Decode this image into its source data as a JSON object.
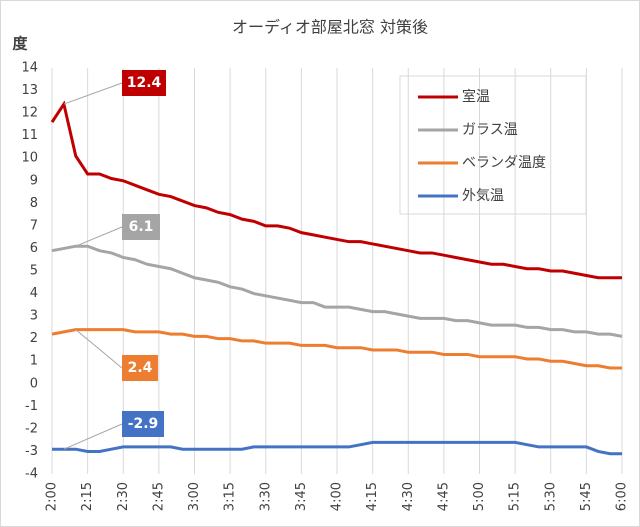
{
  "chart_data": {
    "type": "line",
    "title": "オーディオ部屋北窓 対策後",
    "y_label": "度",
    "categories": [
      "2:00",
      null,
      null,
      "2:15",
      null,
      null,
      "2:30",
      null,
      null,
      "2:45",
      null,
      null,
      "3:00",
      null,
      null,
      "3:15",
      null,
      null,
      "3:30",
      null,
      null,
      "3:45",
      null,
      null,
      "4:00",
      null,
      null,
      "4:15",
      null,
      null,
      "4:30",
      null,
      null,
      "4:45",
      null,
      null,
      "5:00",
      null,
      null,
      "5:15",
      null,
      null,
      "5:30",
      null,
      null,
      "5:45",
      null,
      null,
      "6:00"
    ],
    "series": [
      {
        "name": "室温",
        "color": "#c00000",
        "values": [
          11.6,
          12.4,
          10.1,
          9.3,
          9.3,
          9.1,
          9.0,
          8.8,
          8.6,
          8.4,
          8.3,
          8.1,
          7.9,
          7.8,
          7.6,
          7.5,
          7.3,
          7.2,
          7.0,
          7.0,
          6.9,
          6.7,
          6.6,
          6.5,
          6.4,
          6.3,
          6.3,
          6.2,
          6.1,
          6.0,
          5.9,
          5.8,
          5.8,
          5.7,
          5.6,
          5.5,
          5.4,
          5.3,
          5.3,
          5.2,
          5.1,
          5.1,
          5.0,
          5.0,
          4.9,
          4.8,
          4.7,
          4.7,
          4.7
        ],
        "value_labels": [
          null,
          "12.4",
          null,
          null,
          null,
          null,
          null,
          null,
          null,
          null,
          null,
          null,
          null,
          null,
          null,
          null,
          null,
          null,
          null,
          null,
          null,
          null,
          null,
          null,
          null,
          null,
          null,
          null,
          null,
          null,
          null,
          null,
          null,
          null,
          null,
          null,
          null,
          null,
          null,
          null,
          null,
          null,
          null,
          null,
          null,
          null,
          null,
          null,
          null
        ]
      },
      {
        "name": "ガラス温",
        "color": "#a5a5a5",
        "values": [
          5.9,
          6.0,
          6.1,
          6.1,
          5.9,
          5.8,
          5.6,
          5.5,
          5.3,
          5.2,
          5.1,
          4.9,
          4.7,
          4.6,
          4.5,
          4.3,
          4.2,
          4.0,
          3.9,
          3.8,
          3.7,
          3.6,
          3.6,
          3.4,
          3.4,
          3.4,
          3.3,
          3.2,
          3.2,
          3.1,
          3.0,
          2.9,
          2.9,
          2.9,
          2.8,
          2.8,
          2.7,
          2.6,
          2.6,
          2.6,
          2.5,
          2.5,
          2.4,
          2.4,
          2.3,
          2.3,
          2.2,
          2.2,
          2.1
        ],
        "value_labels": [
          null,
          null,
          "6.1",
          null,
          null,
          null,
          null,
          null,
          null,
          null,
          null,
          null,
          null,
          null,
          null,
          null,
          null,
          null,
          null,
          null,
          null,
          null,
          null,
          null,
          null,
          null,
          null,
          null,
          null,
          null,
          null,
          null,
          null,
          null,
          null,
          null,
          null,
          null,
          null,
          null,
          null,
          null,
          null,
          null,
          null,
          null,
          null,
          null,
          null
        ]
      },
      {
        "name": "ベランダ温度",
        "color": "#ed7d31",
        "values": [
          2.2,
          2.3,
          2.4,
          2.4,
          2.4,
          2.4,
          2.4,
          2.3,
          2.3,
          2.3,
          2.2,
          2.2,
          2.1,
          2.1,
          2.0,
          2.0,
          1.9,
          1.9,
          1.8,
          1.8,
          1.8,
          1.7,
          1.7,
          1.7,
          1.6,
          1.6,
          1.6,
          1.5,
          1.5,
          1.5,
          1.4,
          1.4,
          1.4,
          1.3,
          1.3,
          1.3,
          1.2,
          1.2,
          1.2,
          1.2,
          1.1,
          1.1,
          1.0,
          1.0,
          0.9,
          0.8,
          0.8,
          0.7,
          0.7
        ],
        "value_labels": [
          null,
          null,
          "2.4",
          null,
          null,
          null,
          null,
          null,
          null,
          null,
          null,
          null,
          null,
          null,
          null,
          null,
          null,
          null,
          null,
          null,
          null,
          null,
          null,
          null,
          null,
          null,
          null,
          null,
          null,
          null,
          null,
          null,
          null,
          null,
          null,
          null,
          null,
          null,
          null,
          null,
          null,
          null,
          null,
          null,
          null,
          null,
          null,
          null,
          null
        ]
      },
      {
        "name": "外気温",
        "color": "#4472c4",
        "values": [
          -2.9,
          -2.9,
          -2.9,
          -3.0,
          -3.0,
          -2.9,
          -2.8,
          -2.8,
          -2.8,
          -2.8,
          -2.8,
          -2.9,
          -2.9,
          -2.9,
          -2.9,
          -2.9,
          -2.9,
          -2.8,
          -2.8,
          -2.8,
          -2.8,
          -2.8,
          -2.8,
          -2.8,
          -2.8,
          -2.8,
          -2.7,
          -2.6,
          -2.6,
          -2.6,
          -2.6,
          -2.6,
          -2.6,
          -2.6,
          -2.6,
          -2.6,
          -2.6,
          -2.6,
          -2.6,
          -2.6,
          -2.7,
          -2.8,
          -2.8,
          -2.8,
          -2.8,
          -2.8,
          -3.0,
          -3.1,
          -3.1
        ],
        "value_labels": [
          null,
          "-2.9",
          null,
          null,
          null,
          null,
          null,
          null,
          null,
          null,
          null,
          null,
          null,
          null,
          null,
          null,
          null,
          null,
          null,
          null,
          null,
          null,
          null,
          null,
          null,
          null,
          null,
          null,
          null,
          null,
          null,
          null,
          null,
          null,
          null,
          null,
          null,
          null,
          null,
          null,
          null,
          null,
          null,
          null,
          null,
          null,
          null,
          null,
          null
        ]
      }
    ],
    "ylim": [
      -4,
      14
    ],
    "yticks": [
      -4,
      -3,
      -2,
      -1,
      0,
      1,
      2,
      3,
      4,
      5,
      6,
      7,
      8,
      9,
      10,
      11,
      12,
      13,
      14
    ],
    "grid": "x",
    "legend": "top-right"
  }
}
